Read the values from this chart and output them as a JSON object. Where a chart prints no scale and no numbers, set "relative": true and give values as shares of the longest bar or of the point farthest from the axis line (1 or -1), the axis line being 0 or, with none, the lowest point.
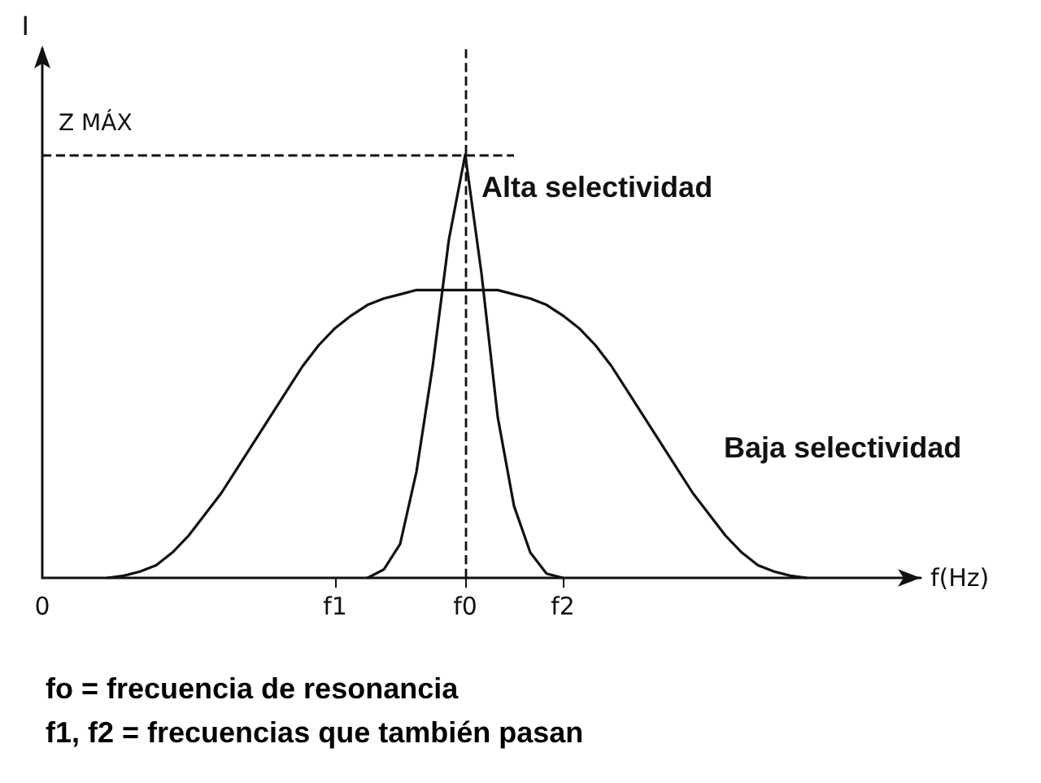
{
  "chart_data": {
    "type": "line",
    "relative": true,
    "xlabel": "f(Hz)",
    "ylabel": "I",
    "categories": [
      "0",
      null,
      null,
      null,
      null,
      null,
      null,
      null,
      null,
      null,
      null,
      null,
      null,
      null,
      null,
      null,
      null,
      null,
      "f1",
      null,
      null,
      null,
      null,
      null,
      null,
      null,
      "f0",
      null,
      null,
      null,
      null,
      null,
      "f2",
      null,
      null,
      null,
      null,
      null,
      null,
      null,
      null,
      null,
      null,
      null,
      null,
      null,
      null,
      null,
      null,
      null,
      null,
      null,
      null,
      null,
      null
    ],
    "series": [
      {
        "name": "Alta selectividad",
        "color": "#111111",
        "values": [
          null,
          null,
          null,
          null,
          null,
          null,
          null,
          null,
          null,
          null,
          null,
          null,
          null,
          null,
          null,
          null,
          null,
          null,
          null,
          null,
          0,
          0.02,
          0.08,
          0.25,
          0.5,
          0.8,
          1,
          0.72,
          0.38,
          0.17,
          0.06,
          0.01,
          0,
          null,
          null,
          null,
          null,
          null,
          null,
          null,
          null,
          null,
          null,
          null,
          null,
          null,
          null,
          null,
          null,
          null,
          null,
          null,
          null,
          null,
          null
        ]
      },
      {
        "name": "Baja selectividad",
        "color": "#111111",
        "values": [
          null,
          null,
          null,
          null,
          0,
          0.005,
          0.015,
          0.03,
          0.06,
          0.1,
          0.15,
          0.2,
          0.26,
          0.32,
          0.38,
          0.44,
          0.5,
          0.55,
          0.59,
          0.62,
          0.645,
          0.66,
          0.67,
          0.68,
          0.68,
          0.68,
          0.68,
          0.68,
          0.68,
          0.67,
          0.66,
          0.645,
          0.62,
          0.59,
          0.55,
          0.5,
          0.44,
          0.38,
          0.32,
          0.26,
          0.2,
          0.15,
          0.1,
          0.06,
          0.03,
          0.015,
          0.005,
          0,
          null,
          null,
          null,
          null,
          null,
          null,
          null
        ]
      }
    ],
    "ref_lines": [
      {
        "axis": "x",
        "value": "f0",
        "line_style": "dashed"
      },
      {
        "axis": "y",
        "value": 1,
        "label": "Z MÁX",
        "line_style": "dashed"
      }
    ],
    "line_style": "solid",
    "annotations": [
      "fo = frecuencia de resonancia",
      "f1, f2 = frecuencias que también pasan"
    ]
  }
}
